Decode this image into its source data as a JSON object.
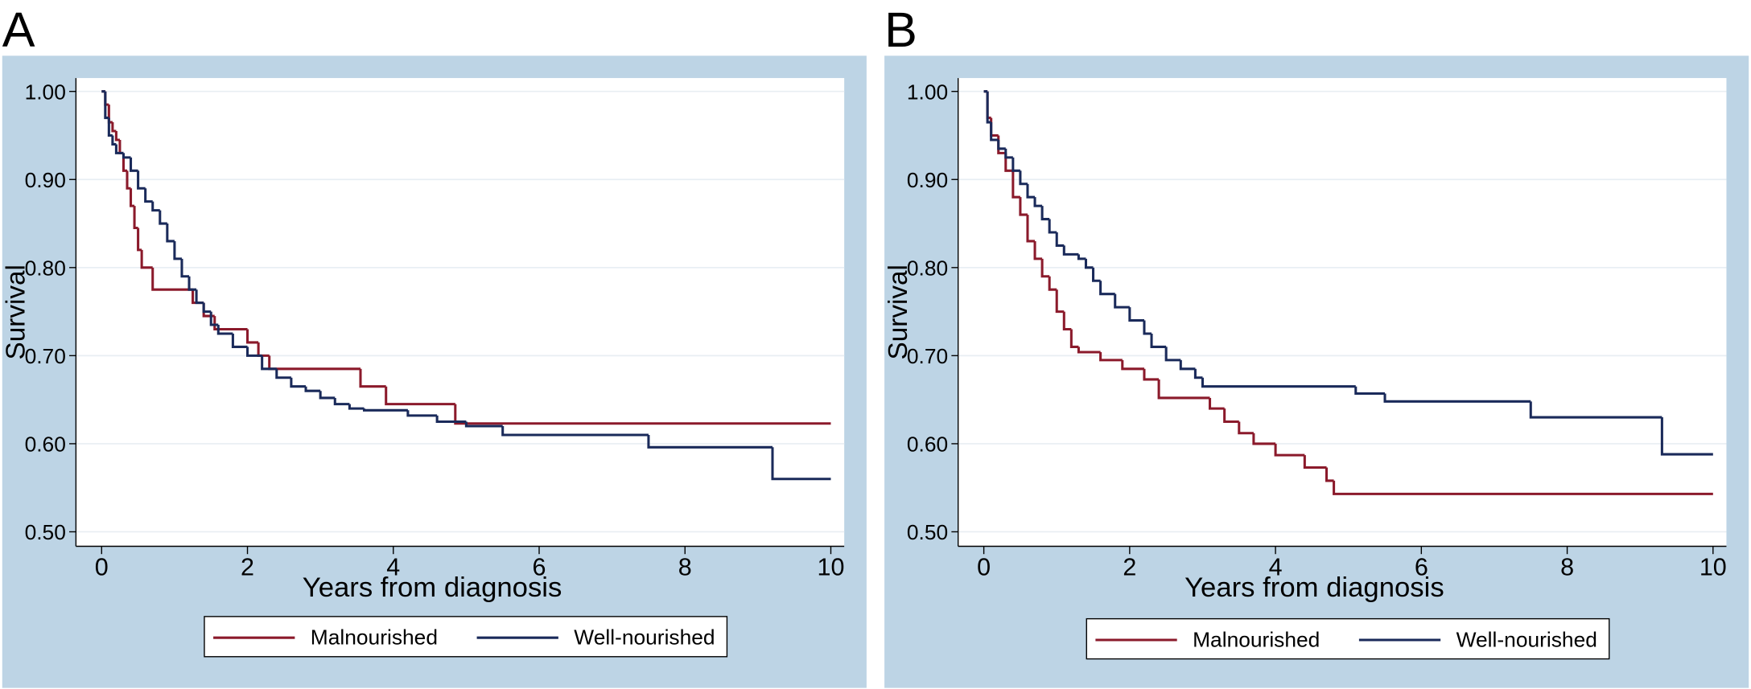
{
  "chart_data": [
    {
      "type": "step",
      "panel_label": "A",
      "xlabel": "Years from diagnosis",
      "ylabel": "Survival",
      "xlim": [
        0,
        10
      ],
      "xticks": [
        0,
        2,
        4,
        6,
        8,
        10
      ],
      "ylim": [
        0.5,
        1.0
      ],
      "yticks": [
        {
          "value": 0.5,
          "label": "0.50"
        },
        {
          "value": 0.6,
          "label": "0.60"
        },
        {
          "value": 0.7,
          "label": "0.70"
        },
        {
          "value": 0.8,
          "label": "0.80"
        },
        {
          "value": 0.9,
          "label": "0.90"
        },
        {
          "value": 1.0,
          "label": "1.00"
        }
      ],
      "grid": true,
      "series": [
        {
          "name": "Malnourished",
          "color": "#8b1a2b",
          "x": [
            0,
            0.05,
            0.1,
            0.15,
            0.2,
            0.25,
            0.3,
            0.35,
            0.4,
            0.45,
            0.5,
            0.55,
            0.7,
            1.25,
            1.4,
            1.55,
            2.0,
            2.15,
            2.3,
            3.55,
            3.9,
            4.85,
            10
          ],
          "values": [
            1.0,
            0.985,
            0.965,
            0.955,
            0.945,
            0.93,
            0.91,
            0.89,
            0.87,
            0.845,
            0.82,
            0.8,
            0.775,
            0.76,
            0.745,
            0.73,
            0.715,
            0.7,
            0.685,
            0.665,
            0.645,
            0.623,
            0.623
          ]
        },
        {
          "name": "Well-nourished",
          "color": "#1a2a5a",
          "x": [
            0,
            0.05,
            0.1,
            0.15,
            0.2,
            0.3,
            0.4,
            0.5,
            0.6,
            0.7,
            0.8,
            0.9,
            1.0,
            1.1,
            1.2,
            1.3,
            1.4,
            1.5,
            1.6,
            1.8,
            2.0,
            2.2,
            2.4,
            2.6,
            2.8,
            3.0,
            3.2,
            3.4,
            3.6,
            4.2,
            4.6,
            5.0,
            5.5,
            7.5,
            9.2,
            10
          ],
          "values": [
            1.0,
            0.97,
            0.95,
            0.94,
            0.93,
            0.925,
            0.91,
            0.89,
            0.875,
            0.865,
            0.85,
            0.83,
            0.81,
            0.79,
            0.775,
            0.76,
            0.75,
            0.735,
            0.725,
            0.71,
            0.7,
            0.685,
            0.675,
            0.665,
            0.66,
            0.652,
            0.645,
            0.64,
            0.638,
            0.632,
            0.625,
            0.62,
            0.61,
            0.596,
            0.56,
            0.56
          ]
        }
      ]
    },
    {
      "type": "step",
      "panel_label": "B",
      "xlabel": "Years from diagnosis",
      "ylabel": "Survival",
      "xlim": [
        0,
        10
      ],
      "xticks": [
        0,
        2,
        4,
        6,
        8,
        10
      ],
      "ylim": [
        0.5,
        1.0
      ],
      "yticks": [
        {
          "value": 0.5,
          "label": "0.50"
        },
        {
          "value": 0.6,
          "label": "0.60"
        },
        {
          "value": 0.7,
          "label": "0.70"
        },
        {
          "value": 0.8,
          "label": "0.80"
        },
        {
          "value": 0.9,
          "label": "0.90"
        },
        {
          "value": 1.0,
          "label": "1.00"
        }
      ],
      "grid": true,
      "series": [
        {
          "name": "Malnourished",
          "color": "#8b1a2b",
          "x": [
            0,
            0.05,
            0.1,
            0.2,
            0.3,
            0.4,
            0.5,
            0.6,
            0.7,
            0.8,
            0.9,
            1.0,
            1.1,
            1.2,
            1.3,
            1.6,
            1.9,
            2.2,
            2.4,
            3.1,
            3.3,
            3.5,
            3.7,
            4.0,
            4.4,
            4.7,
            4.8,
            10
          ],
          "values": [
            1.0,
            0.97,
            0.95,
            0.93,
            0.91,
            0.88,
            0.86,
            0.83,
            0.81,
            0.79,
            0.775,
            0.75,
            0.73,
            0.71,
            0.704,
            0.695,
            0.685,
            0.673,
            0.652,
            0.64,
            0.625,
            0.612,
            0.6,
            0.587,
            0.573,
            0.558,
            0.543,
            0.543
          ]
        },
        {
          "name": "Well-nourished",
          "color": "#1a2a5a",
          "x": [
            0,
            0.05,
            0.1,
            0.2,
            0.3,
            0.4,
            0.5,
            0.6,
            0.7,
            0.8,
            0.9,
            1.0,
            1.1,
            1.3,
            1.4,
            1.5,
            1.6,
            1.8,
            2.0,
            2.2,
            2.3,
            2.5,
            2.7,
            2.9,
            3.0,
            5.1,
            5.5,
            7.5,
            9.3,
            10
          ],
          "values": [
            1.0,
            0.965,
            0.945,
            0.935,
            0.925,
            0.91,
            0.895,
            0.88,
            0.87,
            0.855,
            0.84,
            0.825,
            0.815,
            0.81,
            0.8,
            0.785,
            0.77,
            0.755,
            0.74,
            0.725,
            0.71,
            0.695,
            0.685,
            0.675,
            0.665,
            0.657,
            0.648,
            0.63,
            0.588,
            0.588
          ]
        }
      ]
    }
  ]
}
